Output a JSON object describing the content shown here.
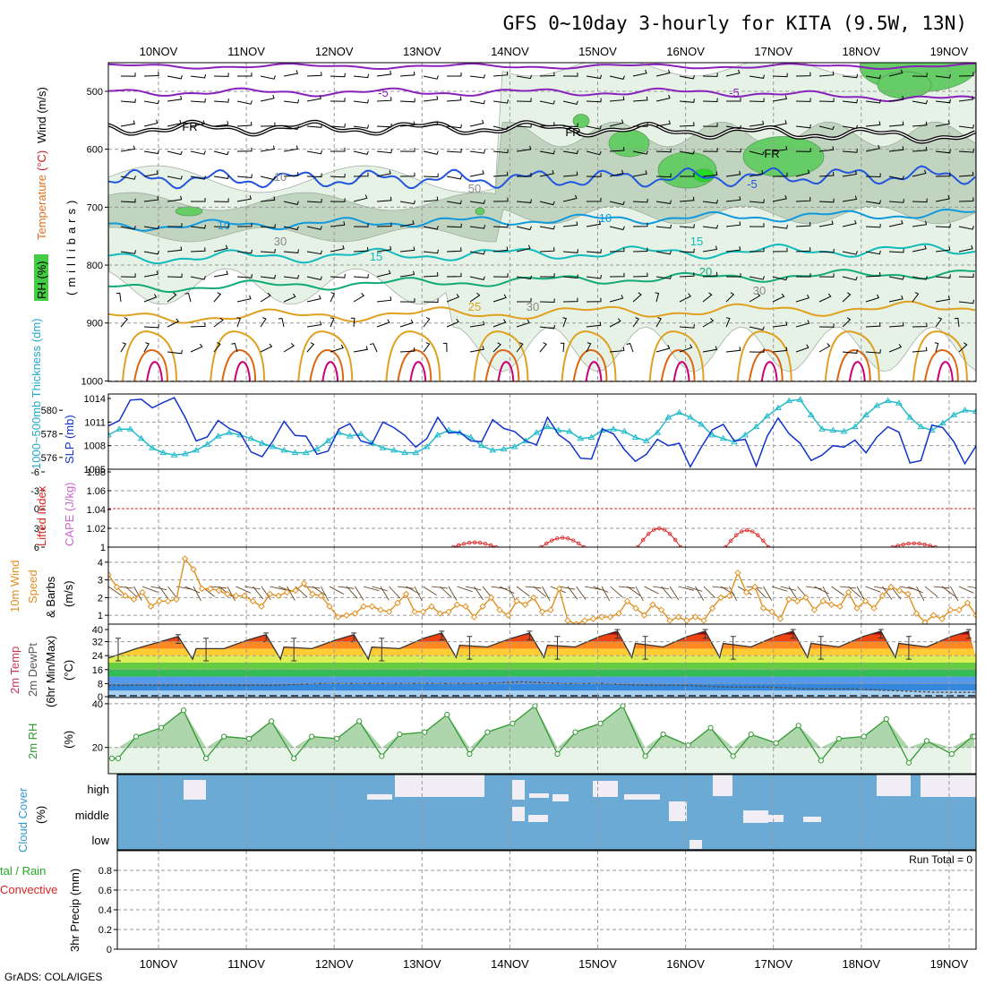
{
  "title": "GFS 0~10day 3-hourly for KITA (9.5W, 13N)",
  "footer": "GrADS: COLA/IGES",
  "colors": {
    "grid": "#999999",
    "rh_light": "#e6f2e6",
    "rh_mid": "#c0d4c0",
    "rh_high": "#66cc66",
    "rh_max": "#22dd22",
    "temp_purple": "#8822bb",
    "temp_blue": "#2255dd",
    "temp_cyan": "#1199dd",
    "temp_teal": "#11bbbb",
    "temp_green": "#11aa77",
    "temp_orange": "#e0a020",
    "temp_dark_orange": "#dd6611",
    "temp_magenta": "#cc0077",
    "slp": "#1133cc",
    "thickness": "#22bbcc",
    "lifted": "#dd2222",
    "cape": "#cc66cc",
    "wind10m": "#e09020",
    "barb": "#553311",
    "dewpt": "#555555",
    "rh2m": "#339933",
    "rh2m_fill": "#99cc99",
    "cloud": "#6aaad4",
    "cloud_clear": "#f0eef4"
  },
  "dates": [
    "10NOV",
    "11NOV",
    "12NOV",
    "13NOV",
    "14NOV",
    "15NOV",
    "16NOV",
    "17NOV",
    "18NOV",
    "19NOV"
  ],
  "panels": {
    "upper": {
      "ylabel_parts": [
        {
          "text": "RH (%)",
          "color": "#22aa22"
        },
        {
          "text": "Temperature",
          "color": "#e07020"
        },
        {
          "text": "(°C)",
          "color": "#cc2222"
        },
        {
          "text": "Wind (m/s)",
          "color": "#000000"
        }
      ],
      "ylabel2": "(millibars)",
      "ticks": [
        "500",
        "600",
        "700",
        "800",
        "900",
        "1000"
      ],
      "contour_labels": [
        {
          "text": "-5",
          "color": "#8822bb"
        },
        {
          "text": "-5",
          "color": "#8822bb"
        },
        {
          "text": "FR",
          "color": "#000000"
        },
        {
          "text": "FR",
          "color": "#000000"
        },
        {
          "text": "FR",
          "color": "#000000"
        },
        {
          "text": "-5",
          "color": "#2255dd"
        },
        {
          "text": "10",
          "color": "#1199dd"
        },
        {
          "text": "10",
          "color": "#1199dd"
        },
        {
          "text": "15",
          "color": "#11bbbb"
        },
        {
          "text": "15",
          "color": "#11bbbb"
        },
        {
          "text": "20",
          "color": "#11aa77"
        },
        {
          "text": "25",
          "color": "#e0a020"
        },
        {
          "text": "30",
          "color": "#888888"
        },
        {
          "text": "50",
          "color": "#888888"
        },
        {
          "text": "30",
          "color": "#888888"
        },
        {
          "text": "30",
          "color": "#888888"
        },
        {
          "text": "10",
          "color": "#888888"
        }
      ]
    },
    "slp": {
      "ylabel_left": "1000~500mb Thickness (dm)",
      "ylabel_right": "SLP (mb)",
      "ticks_left": [
        "580",
        "578",
        "576"
      ],
      "ticks_right": [
        "1014",
        "1011",
        "1008",
        "1005"
      ]
    },
    "cape": {
      "ylabel_left": "Lifted Index",
      "ylabel_right": "CAPE (J/kg)",
      "ticks_left": [
        "-6",
        "-3",
        "0",
        "3",
        "6"
      ],
      "ticks_right": [
        "1.08",
        "1.06",
        "1.04",
        "1.02",
        "1"
      ]
    },
    "wind": {
      "ylabel1": "10m Wind",
      "ylabel2": "Speed",
      "ylabel3": "& Barbs",
      "ylabel_unit": "(m/s)",
      "ticks": [
        "4",
        "3",
        "2",
        "1"
      ]
    },
    "temp": {
      "ylabel1": "2m Temp",
      "ylabel2": "2m DewPt",
      "ylabel3": "(6hr Min/Max)",
      "ylabel_unit": "(°C)",
      "ticks": [
        "40",
        "32",
        "24",
        "16",
        "8",
        "0"
      ]
    },
    "rh": {
      "ylabel": "2m RH",
      "ylabel_unit": "(%)",
      "ticks": [
        "40",
        "20"
      ]
    },
    "cloud": {
      "ylabel1": "Cloud Cover",
      "ylabel_unit": "(%)",
      "ticks": [
        "high",
        "middle",
        "low"
      ]
    },
    "precip": {
      "ylabel1": "tal / Rain",
      "ylabel2": "Convective",
      "ylabel3": "3hr Precip (mm)",
      "ticks": [
        "0.8",
        "0.6",
        "0.4",
        "0.2",
        "0"
      ],
      "run_total": "Run Total = 0"
    }
  },
  "chart_data": [
    {
      "type": "line",
      "panel": "slp",
      "series_name": "SLP (mb)",
      "ylim": [
        1005,
        1014
      ],
      "values": [
        1010.5,
        1011.2,
        1013.8,
        1013.9,
        1012.8,
        1013.5,
        1014.1,
        1011.6,
        1008.6,
        1009.1,
        1011.2,
        1010.2,
        1009.6,
        1007.2,
        1006.6,
        1008.6,
        1011.1,
        1009.3,
        1009.2,
        1006.9,
        1007.3,
        1010.1,
        1010.8,
        1008.6,
        1008.2,
        1011.0,
        1010.3,
        1009.3,
        1007.8,
        1008.9,
        1011.6,
        1009.6,
        1009.7,
        1008.6,
        1008.5,
        1011.3,
        1010.2,
        1009.8,
        1008.6,
        1008.1,
        1011.6,
        1009.4,
        1008.4,
        1006.4,
        1006.3,
        1010.1,
        1009.5,
        1007.5,
        1006.0,
        1006.9,
        1008.8,
        1008.0,
        1008.3,
        1005.3,
        1007.8,
        1010.0,
        1010.7,
        1008.6,
        1008.8,
        1005.4,
        1009.2,
        1011.5,
        1009.5,
        1008.3,
        1006.1,
        1006.8,
        1008.0,
        1007.8,
        1008.7,
        1007.1,
        1009.1,
        1010.4,
        1009.7,
        1005.8,
        1006.1,
        1010.6,
        1010.3,
        1008.5,
        1005.7,
        1007.9,
        1011.2,
        1010.8,
        1008.3,
        1007.5,
        1008.1,
        1011.4,
        1010.5,
        1007.9,
        1007.1
      ]
    },
    {
      "type": "line",
      "panel": "thickness",
      "series_name": "1000~500mb Thickness (dm)",
      "ylim": [
        575,
        581
      ],
      "values": [
        577.9,
        578.4,
        578.4,
        577.6,
        576.8,
        576.4,
        576.2,
        576.3,
        576.6,
        577.1,
        577.8,
        578.1,
        577.9,
        577.6,
        577.2,
        576.9,
        576.6,
        576.4,
        576.4,
        576.7,
        577.4,
        578.1,
        577.8,
        578.0,
        577.2,
        576.8,
        576.6,
        576.4,
        576.4,
        576.9,
        577.9,
        578.3,
        578.1,
        577.7,
        577.0,
        576.6,
        576.7,
        576.9,
        577.4,
        578.1,
        578.6,
        578.3,
        578.2,
        577.6,
        577.7,
        578.3,
        578.4,
        578.2,
        577.7,
        577.4,
        578.1,
        579.4,
        579.8,
        579.4,
        578.8,
        577.9,
        577.6,
        577.3,
        577.9,
        578.6,
        579.5,
        580.2,
        580.8,
        580.9,
        579.6,
        578.4,
        578.3,
        578.2,
        578.6,
        579.6,
        580.4,
        580.8,
        580.6,
        579.4,
        578.6,
        578.3,
        578.9,
        579.6,
        580.0,
        579.9,
        579.5,
        578.8,
        577.9,
        577.5,
        578.6,
        579.6,
        580.4,
        579.6,
        579.0
      ]
    },
    {
      "type": "line",
      "panel": "cape",
      "series_name": "CAPE (J/kg)",
      "ylim": [
        1,
        1.08
      ],
      "bumps": [
        {
          "date_index": 3.6,
          "peak": 1.005
        },
        {
          "date_index": 4.6,
          "peak": 1.01
        },
        {
          "date_index": 5.7,
          "peak": 1.02
        },
        {
          "date_index": 6.7,
          "peak": 1.018
        },
        {
          "date_index": 8.6,
          "peak": 1.004
        }
      ]
    },
    {
      "type": "line",
      "panel": "wind",
      "series_name": "10m Wind Speed (m/s)",
      "ylim": [
        0.5,
        4.6
      ],
      "values": [
        3.3,
        2.6,
        2.1,
        1.9,
        2.3,
        1.5,
        1.8,
        1.8,
        1.9,
        4.2,
        3.6,
        2.5,
        2.5,
        2.4,
        2.2,
        2.1,
        2.1,
        1.8,
        1.5,
        2.2,
        2.1,
        2.3,
        2.4,
        2.8,
        2.2,
        2.1,
        1.5,
        0.9,
        1.0,
        1.1,
        1.5,
        1.5,
        1.3,
        1.2,
        1.7,
        2.2,
        1.2,
        1.2,
        1.5,
        1.1,
        1.2,
        1.6,
        1.5,
        0.9,
        1.5,
        2.0,
        1.3,
        1.0,
        1.8,
        1.6,
        2.0,
        1.2,
        1.3,
        2.5,
        0.7,
        0.5,
        0.7,
        0.8,
        0.9,
        0.9,
        1.1,
        1.8,
        1.4,
        1.0,
        1.6,
        1.3,
        0.7,
        0.9,
        0.7,
        0.9,
        0.7,
        1.4,
        2.0,
        2.1,
        3.4,
        2.3,
        2.6,
        1.4,
        1.2,
        0.8,
        1.9,
        1.8,
        2.0,
        1.3,
        1.8,
        1.6,
        1.5,
        2.3,
        1.4,
        1.8,
        1.4,
        2.1,
        2.6,
        2.4,
        2.2,
        1.1,
        0.6,
        1.0,
        0.8,
        1.3,
        1.3,
        1.7,
        1.0
      ]
    },
    {
      "type": "area",
      "panel": "temp",
      "series_name": "2m Temp (°C)",
      "ylim": [
        0,
        40
      ],
      "daily_max": [
        35,
        36,
        36,
        37,
        37,
        38,
        38,
        38,
        38,
        38
      ],
      "daily_min": [
        22,
        22,
        22,
        22,
        23,
        23,
        23,
        23,
        23,
        23
      ],
      "dewpoint": [
        7,
        7,
        7,
        7,
        7,
        8,
        8,
        8,
        8,
        8,
        9,
        8,
        8,
        7,
        7,
        6,
        6,
        5,
        5,
        4,
        3,
        3
      ]
    },
    {
      "type": "area",
      "panel": "rh",
      "series_name": "2m RH (%)",
      "ylim": [
        8,
        42
      ],
      "daily_peaks": [
        37,
        32,
        32,
        35,
        39,
        39,
        29,
        30,
        33,
        25
      ],
      "daily_troughs": [
        15,
        15,
        15,
        16,
        17,
        17,
        16,
        16,
        14,
        13
      ]
    },
    {
      "type": "heatmap",
      "panel": "cloud",
      "levels": [
        "high",
        "middle",
        "low"
      ],
      "note": "mostly overcast (blue); clear gaps drawn light"
    },
    {
      "type": "bar",
      "panel": "precip",
      "series_name": "3hr Precip (mm)",
      "ylim": [
        0,
        1
      ],
      "values_total": 0
    }
  ]
}
